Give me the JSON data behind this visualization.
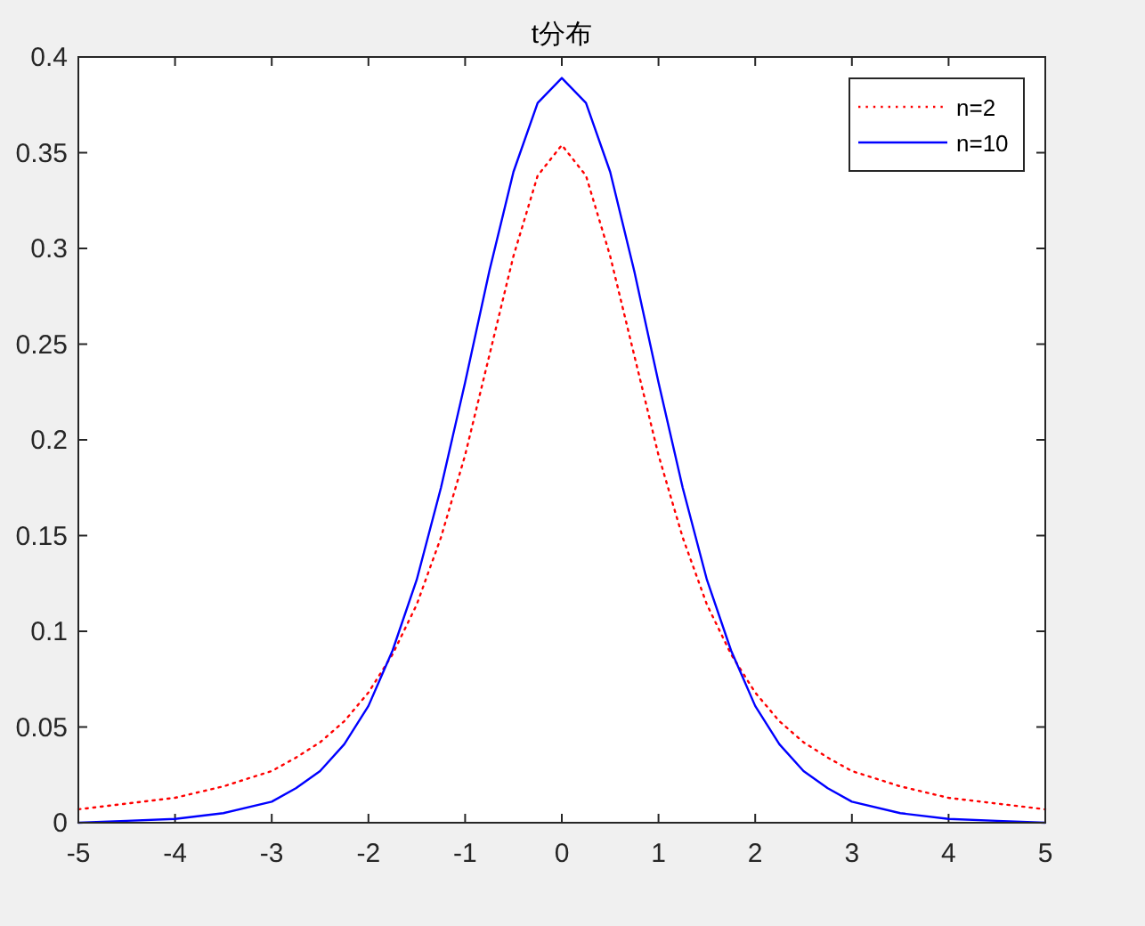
{
  "chart_data": {
    "type": "line",
    "title": "t分布",
    "x": [
      -5,
      -4.5,
      -4,
      -3.5,
      -3,
      -2.75,
      -2.5,
      -2.25,
      -2,
      -1.75,
      -1.5,
      -1.25,
      -1,
      -0.75,
      -0.5,
      -0.25,
      0,
      0.25,
      0.5,
      0.75,
      1,
      1.25,
      1.5,
      1.75,
      2,
      2.25,
      2.5,
      2.75,
      3,
      3.5,
      4,
      4.5,
      5
    ],
    "series": [
      {
        "name": "n=2",
        "color": "#ff0000",
        "line_style": "dotted",
        "values": [
          0.007,
          0.01,
          0.013,
          0.019,
          0.027,
          0.034,
          0.042,
          0.053,
          0.068,
          0.088,
          0.114,
          0.149,
          0.192,
          0.244,
          0.296,
          0.338,
          0.354,
          0.338,
          0.296,
          0.244,
          0.192,
          0.149,
          0.114,
          0.088,
          0.068,
          0.053,
          0.042,
          0.034,
          0.027,
          0.019,
          0.013,
          0.01,
          0.007
        ]
      },
      {
        "name": "n=10",
        "color": "#0000ff",
        "line_style": "solid",
        "values": [
          0.0,
          0.001,
          0.002,
          0.005,
          0.011,
          0.018,
          0.027,
          0.041,
          0.061,
          0.09,
          0.127,
          0.175,
          0.23,
          0.288,
          0.34,
          0.376,
          0.389,
          0.376,
          0.34,
          0.288,
          0.23,
          0.175,
          0.127,
          0.09,
          0.061,
          0.041,
          0.027,
          0.018,
          0.011,
          0.005,
          0.002,
          0.001,
          0.0
        ]
      }
    ],
    "xlim": [
      -5,
      5
    ],
    "ylim": [
      0,
      0.4
    ],
    "xticks": [
      -5,
      -4,
      -3,
      -2,
      -1,
      0,
      1,
      2,
      3,
      4,
      5
    ],
    "yticks": [
      0,
      0.05,
      0.1,
      0.15,
      0.2,
      0.25,
      0.3,
      0.35,
      0.4
    ],
    "grid": false,
    "legend": "top right"
  }
}
